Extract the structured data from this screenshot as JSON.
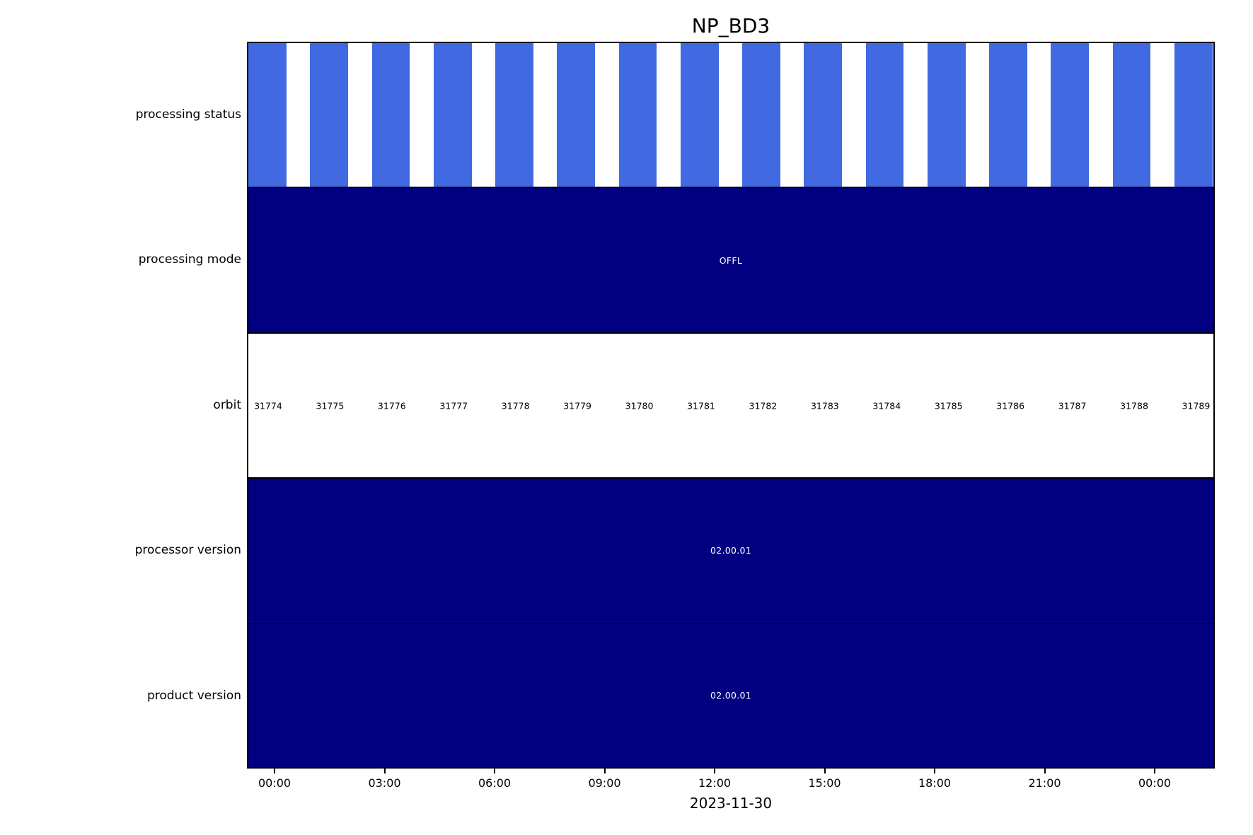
{
  "title": "NP_BD3",
  "x_axis": {
    "tick_labels": [
      "00:00",
      "03:00",
      "06:00",
      "09:00",
      "12:00",
      "15:00",
      "18:00",
      "21:00",
      "00:00"
    ],
    "date_label": "2023-11-30"
  },
  "row_labels": [
    "processing status",
    "processing mode",
    "orbit",
    "processor version",
    "product version"
  ],
  "annotations": {
    "processing_mode": "OFFL",
    "processor_version": "02.00.01",
    "product_version": "02.00.01"
  },
  "orbits": [
    "31774",
    "31775",
    "31776",
    "31777",
    "31778",
    "31779",
    "31780",
    "31781",
    "31782",
    "31783",
    "31784",
    "31785",
    "31786",
    "31787",
    "31788",
    "31789"
  ],
  "status_bar_count": 16,
  "colors": {
    "status_bar_blue": "#4169E1",
    "band_navy": "#000080",
    "annotation_text": "#ffffff"
  },
  "chart_data": {
    "type": "table",
    "title": "NP_BD3",
    "xlabel": "2023-11-30",
    "x_axis_ticks": [
      "00:00",
      "03:00",
      "06:00",
      "09:00",
      "12:00",
      "15:00",
      "18:00",
      "21:00",
      "00:00"
    ],
    "rows": [
      {
        "label": "processing status",
        "kind": "blocks",
        "block_color": "#4169E1",
        "blocks_per_orbit": 1,
        "block_count": 16,
        "note": "one blue block per orbit, alternating with white gaps"
      },
      {
        "label": "processing mode",
        "kind": "span",
        "value": "OFFL",
        "color": "#000080"
      },
      {
        "label": "orbit",
        "kind": "labels",
        "values": [
          31774,
          31775,
          31776,
          31777,
          31778,
          31779,
          31780,
          31781,
          31782,
          31783,
          31784,
          31785,
          31786,
          31787,
          31788,
          31789
        ]
      },
      {
        "label": "processor version",
        "kind": "span",
        "value": "02.00.01",
        "color": "#000080"
      },
      {
        "label": "product version",
        "kind": "span",
        "value": "02.00.01",
        "color": "#000080"
      }
    ]
  }
}
